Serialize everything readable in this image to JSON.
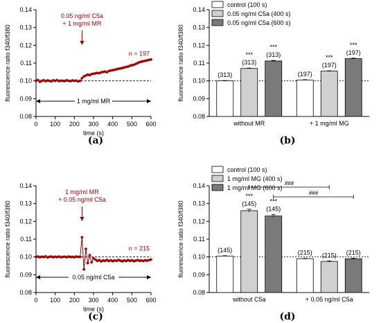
{
  "figure": {
    "panel_labels": [
      "(a)",
      "(b)",
      "(c)",
      "(d)"
    ]
  },
  "chart_data": [
    {
      "panel": "(a)",
      "type": "scatter",
      "xlabel": "time (s)",
      "ylabel": "fluorescence ratio f340/f380",
      "xlim": [
        0,
        600
      ],
      "ylim": [
        0.08,
        0.14
      ],
      "xticks": [
        0,
        100,
        200,
        300,
        400,
        500,
        600
      ],
      "yticks": [
        0.08,
        0.09,
        0.1,
        0.11,
        0.12,
        0.13,
        0.14
      ],
      "baseline": 0.1,
      "annotation_arrow": {
        "x": 240,
        "label_lines": [
          "0.05 ng/ml C5a",
          "+ 1 mg/ml MR"
        ]
      },
      "range_bar": {
        "from": 0,
        "to": 600,
        "label": "1 mg/ml MR"
      },
      "n_label": "n = 197",
      "series": [
        {
          "x": [
            0,
            10,
            20,
            30,
            40,
            50,
            60,
            70,
            80,
            90,
            100,
            110,
            120,
            130,
            140,
            150,
            160,
            170,
            180,
            190,
            200,
            210,
            220,
            230,
            240,
            250,
            260,
            270,
            280,
            290,
            300,
            310,
            320,
            330,
            340,
            350,
            360,
            370,
            380,
            390,
            400,
            410,
            420,
            430,
            440,
            450,
            460,
            470,
            480,
            490,
            500,
            510,
            520,
            530,
            540,
            550,
            560,
            570,
            580,
            590,
            600
          ],
          "y": [
            0.1,
            0.1005,
            0.0995,
            0.1,
            0.1003,
            0.0998,
            0.1002,
            0.1,
            0.0997,
            0.1003,
            0.1,
            0.1004,
            0.0998,
            0.1001,
            0.1,
            0.0999,
            0.1003,
            0.1,
            0.0998,
            0.1002,
            0.1,
            0.1001,
            0.0997,
            0.1,
            0.1015,
            0.1025,
            0.103,
            0.1035,
            0.1032,
            0.1038,
            0.104,
            0.1042,
            0.1045,
            0.1043,
            0.1048,
            0.105,
            0.1052,
            0.1049,
            0.1055,
            0.1058,
            0.106,
            0.1062,
            0.1065,
            0.1068,
            0.107,
            0.1072,
            0.1075,
            0.1078,
            0.108,
            0.1085,
            0.1088,
            0.109,
            0.1095,
            0.11,
            0.1105,
            0.1108,
            0.111,
            0.1113,
            0.1115,
            0.1118,
            0.112
          ]
        }
      ]
    },
    {
      "panel": "(b)",
      "type": "bar",
      "ylabel": "fluorescence ratio f340/f380",
      "ylim": [
        0.08,
        0.14
      ],
      "yticks": [
        0.08,
        0.09,
        0.1,
        0.11,
        0.12,
        0.13,
        0.14
      ],
      "baseline": 0.1,
      "categories": [
        "without MR",
        "+ 1 mg/ml MG"
      ],
      "series": [
        {
          "name": "control (100 s)",
          "color": "#ffffff",
          "values": [
            0.1,
            0.1005
          ],
          "errors": [
            0.0002,
            0.0002
          ],
          "counts": [
            "(313)",
            "(197)"
          ],
          "significance": [
            "",
            ""
          ]
        },
        {
          "name": "0.05 ng/ml C5a (400 s)",
          "color": "#d0d0d0",
          "values": [
            0.107,
            0.1055
          ],
          "errors": [
            0.0002,
            0.0002
          ],
          "counts": [
            "(313)",
            "(197)"
          ],
          "significance": [
            "***",
            "***"
          ]
        },
        {
          "name": "0.05 ng/ml C5a (600 s)",
          "color": "#7a7a7a",
          "values": [
            0.1112,
            0.1125
          ],
          "errors": [
            0.0003,
            0.0003
          ],
          "counts": [
            "(313)",
            "(197)"
          ],
          "significance": [
            "***",
            "***"
          ]
        }
      ]
    },
    {
      "panel": "(c)",
      "type": "scatter",
      "xlabel": "time (s)",
      "ylabel": "fluorescence ratio f340/f380",
      "xlim": [
        0,
        600
      ],
      "ylim": [
        0.08,
        0.14
      ],
      "xticks": [
        0,
        100,
        200,
        300,
        400,
        500,
        600
      ],
      "yticks": [
        0.08,
        0.09,
        0.1,
        0.11,
        0.12,
        0.13,
        0.14
      ],
      "baseline": 0.1,
      "annotation_arrow": {
        "x": 240,
        "label_lines": [
          "1 mg/ml MR",
          "+ 0.05 ng/ml C5a"
        ]
      },
      "range_bar": {
        "from": 0,
        "to": 600,
        "label": "0.05 ng/ml C5a"
      },
      "n_label": "n = 215",
      "series": [
        {
          "x": [
            0,
            10,
            20,
            30,
            40,
            50,
            60,
            70,
            80,
            90,
            100,
            110,
            120,
            130,
            140,
            150,
            160,
            170,
            180,
            190,
            200,
            210,
            220,
            230,
            240,
            250,
            260,
            270,
            280,
            290,
            300,
            310,
            320,
            330,
            340,
            350,
            360,
            370,
            380,
            390,
            400,
            410,
            420,
            430,
            440,
            450,
            460,
            470,
            480,
            490,
            500,
            510,
            520,
            530,
            540,
            550,
            560,
            570,
            580,
            590,
            600
          ],
          "y": [
            0.1,
            0.1002,
            0.0998,
            0.1001,
            0.0999,
            0.1003,
            0.0997,
            0.1,
            0.1002,
            0.0998,
            0.1001,
            0.0999,
            0.1002,
            0.0998,
            0.1,
            0.1001,
            0.0998,
            0.1002,
            0.0999,
            0.1,
            0.0998,
            0.1002,
            0.1,
            0.1,
            0.111,
            0.093,
            0.1045,
            0.0965,
            0.101,
            0.097,
            0.0992,
            0.0985,
            0.0978,
            0.0982,
            0.0975,
            0.098,
            0.0978,
            0.0983,
            0.0977,
            0.0981,
            0.0976,
            0.098,
            0.0978,
            0.0983,
            0.0979,
            0.0975,
            0.098,
            0.0977,
            0.0982,
            0.0978,
            0.0981,
            0.0976,
            0.0979,
            0.0982,
            0.0978,
            0.098,
            0.0977,
            0.0981,
            0.0979,
            0.0982,
            0.0985
          ]
        }
      ]
    },
    {
      "panel": "(d)",
      "type": "bar",
      "ylabel": "fluorescence ratio f340/f380",
      "ylim": [
        0.08,
        0.14
      ],
      "yticks": [
        0.08,
        0.09,
        0.1,
        0.11,
        0.12,
        0.13,
        0.14
      ],
      "baseline": 0.1,
      "categories": [
        "without C5a",
        "+ 0.05 ng/ml C5a"
      ],
      "series": [
        {
          "name": "control (100 s)",
          "color": "#ffffff",
          "values": [
            0.1005,
            0.099
          ],
          "errors": [
            0.0002,
            0.0002
          ],
          "counts": [
            "(145)",
            "(215)"
          ],
          "significance": [
            "",
            ""
          ]
        },
        {
          "name": "1 mg/ml MG (400 s)",
          "color": "#d0d0d0",
          "values": [
            0.126,
            0.0975
          ],
          "errors": [
            0.0008,
            0.0003
          ],
          "counts": [
            "(145)",
            "(215)"
          ],
          "significance": [
            "***",
            ""
          ]
        },
        {
          "name": "1 mg/ml MG (600 s)",
          "color": "#7a7a7a",
          "values": [
            0.123,
            0.099
          ],
          "errors": [
            0.0008,
            0.0003
          ],
          "counts": [
            "(145)",
            "(215)"
          ],
          "significance": [
            "***",
            ""
          ]
        }
      ],
      "comparisons": [
        {
          "from_group": 0,
          "from_series": 1,
          "to_group": 1,
          "to_series": 1,
          "label": "###"
        },
        {
          "from_group": 0,
          "from_series": 2,
          "to_group": 1,
          "to_series": 2,
          "label": "###"
        }
      ]
    }
  ]
}
